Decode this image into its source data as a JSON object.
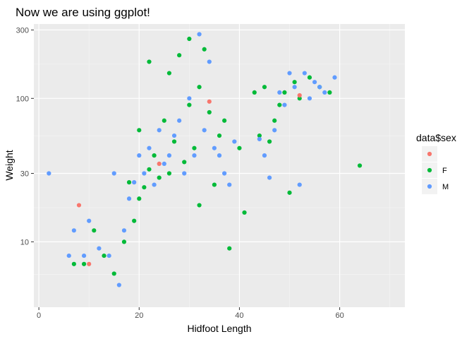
{
  "chart_data": {
    "type": "scatter",
    "title": "Now we are using ggplot!",
    "xlabel": "Hidfoot Length",
    "ylabel": "Weight",
    "xlim": [
      -1,
      73
    ],
    "ylim": [
      3.5,
      330
    ],
    "y_scale": "log10",
    "x_ticks": [
      0,
      20,
      40,
      60
    ],
    "x_tick_labels": [
      "0",
      "20",
      "40",
      "60"
    ],
    "y_ticks": [
      10,
      30,
      100,
      300
    ],
    "y_tick_labels": [
      "10",
      "30",
      "100",
      "300"
    ],
    "grid": true,
    "legend": {
      "title": "data$sex",
      "position": "right",
      "entries": [
        {
          "label": "",
          "color": "#F8766D"
        },
        {
          "label": "F",
          "color": "#00BA38"
        },
        {
          "label": "M",
          "color": "#619CFF"
        }
      ]
    },
    "series": [
      {
        "color": "#00BA38",
        "points": [
          [
            7,
            7
          ],
          [
            9,
            7
          ],
          [
            11,
            12
          ],
          [
            13,
            8
          ],
          [
            15,
            6
          ],
          [
            17,
            10
          ],
          [
            18,
            26
          ],
          [
            19,
            14
          ],
          [
            20,
            20
          ],
          [
            20,
            60
          ],
          [
            21,
            24
          ],
          [
            22,
            32
          ],
          [
            22,
            180
          ],
          [
            23,
            40
          ],
          [
            24,
            28
          ],
          [
            25,
            70
          ],
          [
            26,
            30
          ],
          [
            26,
            150
          ],
          [
            27,
            50
          ],
          [
            28,
            200
          ],
          [
            29,
            36
          ],
          [
            30,
            90
          ],
          [
            30,
            260
          ],
          [
            31,
            45
          ],
          [
            32,
            18
          ],
          [
            32,
            120
          ],
          [
            33,
            220
          ],
          [
            34,
            80
          ],
          [
            35,
            25
          ],
          [
            36,
            55
          ],
          [
            37,
            70
          ],
          [
            38,
            9
          ],
          [
            40,
            45
          ],
          [
            41,
            16
          ],
          [
            43,
            110
          ],
          [
            44,
            55
          ],
          [
            45,
            120
          ],
          [
            46,
            50
          ],
          [
            47,
            70
          ],
          [
            48,
            90
          ],
          [
            49,
            110
          ],
          [
            50,
            22
          ],
          [
            51,
            130
          ],
          [
            52,
            100
          ],
          [
            54,
            140
          ],
          [
            56,
            120
          ],
          [
            58,
            110
          ],
          [
            64,
            34
          ]
        ]
      },
      {
        "color": "#619CFF",
        "points": [
          [
            2,
            30
          ],
          [
            6,
            8
          ],
          [
            7,
            12
          ],
          [
            9,
            8
          ],
          [
            10,
            14
          ],
          [
            12,
            9
          ],
          [
            14,
            8
          ],
          [
            15,
            30
          ],
          [
            16,
            5
          ],
          [
            17,
            12
          ],
          [
            18,
            20
          ],
          [
            19,
            26
          ],
          [
            20,
            40
          ],
          [
            21,
            30
          ],
          [
            22,
            45
          ],
          [
            23,
            25
          ],
          [
            24,
            60
          ],
          [
            25,
            35
          ],
          [
            26,
            40
          ],
          [
            27,
            55
          ],
          [
            28,
            70
          ],
          [
            29,
            30
          ],
          [
            30,
            100
          ],
          [
            31,
            40
          ],
          [
            32,
            280
          ],
          [
            33,
            60
          ],
          [
            34,
            180
          ],
          [
            35,
            45
          ],
          [
            36,
            40
          ],
          [
            37,
            30
          ],
          [
            38,
            25
          ],
          [
            39,
            50
          ],
          [
            44,
            52
          ],
          [
            45,
            40
          ],
          [
            46,
            28
          ],
          [
            47,
            60
          ],
          [
            48,
            110
          ],
          [
            49,
            90
          ],
          [
            50,
            150
          ],
          [
            51,
            120
          ],
          [
            52,
            25
          ],
          [
            53,
            150
          ],
          [
            54,
            100
          ],
          [
            55,
            130
          ],
          [
            56,
            120
          ],
          [
            57,
            110
          ],
          [
            59,
            140
          ]
        ]
      },
      {
        "color": "#F8766D",
        "points": [
          [
            8,
            18
          ],
          [
            10,
            7
          ],
          [
            24,
            35
          ],
          [
            34,
            95
          ],
          [
            52,
            105
          ]
        ]
      }
    ]
  }
}
